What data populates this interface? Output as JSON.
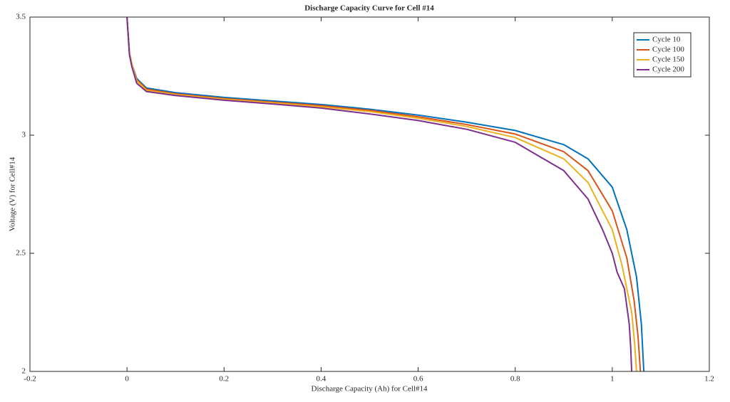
{
  "chart_data": {
    "type": "line",
    "title": "Discharge Capacity Curve for Cell #14",
    "x_label": "Discharge Capacity (Ah) for Cell#14",
    "y_label": "Voltage (V) for Cell#14",
    "xlim": [
      -0.2,
      1.2
    ],
    "xticks": [
      -0.2,
      0,
      0.2,
      0.4,
      0.6,
      0.8,
      1,
      1.2
    ],
    "ylim": [
      2,
      3.5
    ],
    "yticks": [
      2,
      2.5,
      3,
      3.5
    ],
    "legend": "northeast",
    "series": [
      {
        "name": "Cycle 10",
        "color": "#0072BD",
        "x": [
          0,
          0.005,
          0.01,
          0.02,
          0.04,
          0.1,
          0.2,
          0.3,
          0.4,
          0.5,
          0.6,
          0.7,
          0.8,
          0.9,
          0.95,
          1.0,
          1.03,
          1.05,
          1.06,
          1.065
        ],
        "values": [
          3.5,
          3.35,
          3.3,
          3.24,
          3.2,
          3.18,
          3.16,
          3.145,
          3.13,
          3.11,
          3.085,
          3.055,
          3.02,
          2.96,
          2.9,
          2.78,
          2.6,
          2.4,
          2.2,
          2.0
        ]
      },
      {
        "name": "Cycle 100",
        "color": "#D95319",
        "x": [
          0,
          0.005,
          0.01,
          0.02,
          0.04,
          0.1,
          0.2,
          0.3,
          0.4,
          0.5,
          0.6,
          0.7,
          0.8,
          0.9,
          0.95,
          1.0,
          1.03,
          1.045,
          1.053,
          1.058
        ],
        "values": [
          3.5,
          3.35,
          3.3,
          3.235,
          3.195,
          3.175,
          3.155,
          3.14,
          3.125,
          3.105,
          3.078,
          3.045,
          3.005,
          2.93,
          2.85,
          2.68,
          2.48,
          2.3,
          2.15,
          2.0
        ]
      },
      {
        "name": "Cycle 150",
        "color": "#EDB120",
        "x": [
          0,
          0.005,
          0.01,
          0.02,
          0.04,
          0.1,
          0.2,
          0.3,
          0.4,
          0.5,
          0.6,
          0.7,
          0.8,
          0.9,
          0.95,
          1.0,
          1.02,
          1.04,
          1.046,
          1.05
        ],
        "values": [
          3.5,
          3.35,
          3.3,
          3.23,
          3.19,
          3.172,
          3.152,
          3.137,
          3.12,
          3.1,
          3.072,
          3.037,
          2.99,
          2.9,
          2.8,
          2.6,
          2.45,
          2.25,
          2.12,
          2.0
        ]
      },
      {
        "name": "Cycle 200",
        "color": "#7E2F8E",
        "x": [
          0,
          0.005,
          0.01,
          0.02,
          0.04,
          0.1,
          0.2,
          0.3,
          0.4,
          0.5,
          0.6,
          0.7,
          0.8,
          0.9,
          0.95,
          0.98,
          1.0,
          1.01,
          1.025,
          1.035,
          1.038,
          1.04
        ],
        "values": [
          3.5,
          3.34,
          3.29,
          3.22,
          3.185,
          3.168,
          3.148,
          3.132,
          3.115,
          3.09,
          3.062,
          3.025,
          2.97,
          2.85,
          2.73,
          2.6,
          2.5,
          2.42,
          2.35,
          2.2,
          2.1,
          2.0
        ]
      }
    ]
  }
}
